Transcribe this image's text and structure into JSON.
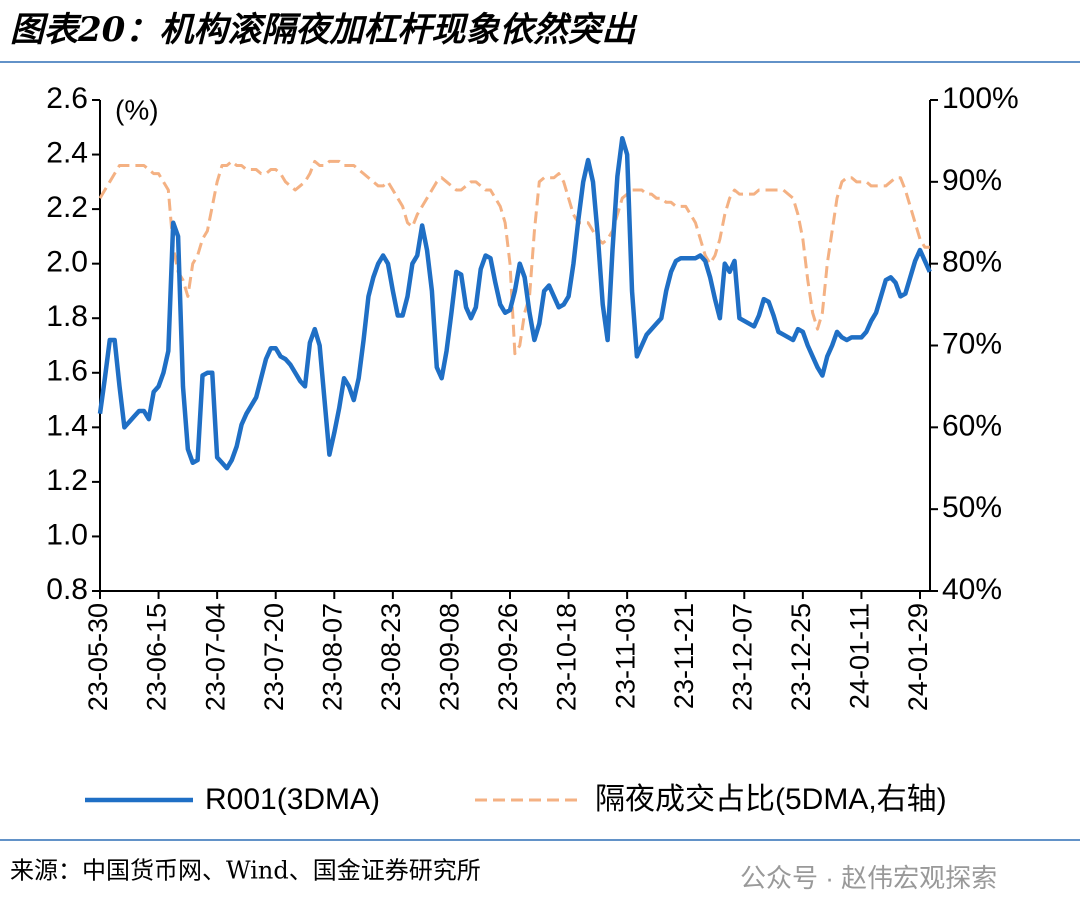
{
  "chart_data": {
    "type": "line",
    "title": "图表20：机构滚隔夜加杠杆现象依然突出",
    "annotation": "(%)",
    "source": "来源：中国货币网、Wind、国金证券研究所",
    "watermark": "公众号 · 赵伟宏观探索",
    "categories": [
      "23-05-30",
      null,
      null,
      null,
      null,
      null,
      null,
      null,
      null,
      null,
      null,
      null,
      "23-06-15",
      null,
      null,
      null,
      null,
      null,
      null,
      null,
      null,
      null,
      null,
      null,
      "23-07-04",
      null,
      null,
      null,
      null,
      null,
      null,
      null,
      null,
      null,
      null,
      null,
      "23-07-20",
      null,
      null,
      null,
      null,
      null,
      null,
      null,
      null,
      null,
      null,
      null,
      "23-08-07",
      null,
      null,
      null,
      null,
      null,
      null,
      null,
      null,
      null,
      null,
      null,
      "23-08-23",
      null,
      null,
      null,
      null,
      null,
      null,
      null,
      null,
      null,
      null,
      null,
      "23-09-08",
      null,
      null,
      null,
      null,
      null,
      null,
      null,
      null,
      null,
      null,
      null,
      "23-09-26",
      null,
      null,
      null,
      null,
      null,
      null,
      null,
      null,
      null,
      null,
      null,
      "23-10-18",
      null,
      null,
      null,
      null,
      null,
      null,
      null,
      null,
      null,
      null,
      null,
      "23-11-03",
      null,
      null,
      null,
      null,
      null,
      null,
      null,
      null,
      null,
      null,
      null,
      "23-11-21",
      null,
      null,
      null,
      null,
      null,
      null,
      null,
      null,
      null,
      null,
      null,
      "23-12-07",
      null,
      null,
      null,
      null,
      null,
      null,
      null,
      null,
      null,
      null,
      null,
      "23-12-25",
      null,
      null,
      null,
      null,
      null,
      null,
      null,
      null,
      null,
      null,
      null,
      "24-01-11",
      null,
      null,
      null,
      null,
      null,
      null,
      null,
      null,
      null,
      null,
      null,
      "24-01-29",
      null,
      null
    ],
    "series": [
      {
        "name": "R001(3DMA)",
        "color": "#1f6fc5",
        "axis": "y",
        "values": [
          1.45,
          1.58,
          1.72,
          1.72,
          1.55,
          1.4,
          1.42,
          1.44,
          1.46,
          1.46,
          1.43,
          1.53,
          1.55,
          1.6,
          1.68,
          2.15,
          2.1,
          1.55,
          1.32,
          1.27,
          1.28,
          1.59,
          1.6,
          1.6,
          1.29,
          1.27,
          1.25,
          1.28,
          1.33,
          1.41,
          1.45,
          1.48,
          1.51,
          1.58,
          1.65,
          1.69,
          1.69,
          1.66,
          1.65,
          1.63,
          1.6,
          1.57,
          1.55,
          1.71,
          1.76,
          1.7,
          1.5,
          1.3,
          1.38,
          1.47,
          1.58,
          1.55,
          1.5,
          1.58,
          1.72,
          1.88,
          1.95,
          2.0,
          2.03,
          2.0,
          1.9,
          1.81,
          1.81,
          1.88,
          2.0,
          2.03,
          2.14,
          2.05,
          1.9,
          1.62,
          1.58,
          1.68,
          1.82,
          1.97,
          1.96,
          1.84,
          1.8,
          1.84,
          1.98,
          2.03,
          2.02,
          1.93,
          1.85,
          1.82,
          1.83,
          1.9,
          2.0,
          1.95,
          1.82,
          1.72,
          1.78,
          1.9,
          1.92,
          1.88,
          1.84,
          1.85,
          1.88,
          2.0,
          2.16,
          2.3,
          2.38,
          2.3,
          2.1,
          1.85,
          1.72,
          2.05,
          2.32,
          2.46,
          2.4,
          1.9,
          1.66,
          1.7,
          1.74,
          1.76,
          1.78,
          1.8,
          1.9,
          1.97,
          2.01,
          2.02,
          2.02,
          2.02,
          2.02,
          2.03,
          2.01,
          1.95,
          1.87,
          1.8,
          2.0,
          1.97,
          2.01,
          1.8,
          1.79,
          1.78,
          1.77,
          1.81,
          1.87,
          1.86,
          1.81,
          1.75,
          1.74,
          1.73,
          1.72,
          1.76,
          1.75,
          1.7,
          1.66,
          1.62,
          1.59,
          1.66,
          1.7,
          1.75,
          1.73,
          1.72,
          1.73,
          1.73,
          1.73,
          1.75,
          1.79,
          1.82,
          1.88,
          1.94,
          1.95,
          1.93,
          1.88,
          1.89,
          1.95,
          2.01,
          2.05,
          2.01,
          1.97
        ]
      },
      {
        "name": "隔夜成交占比(5DMA,右轴)",
        "color": "#f4b183",
        "axis": "y2",
        "dashed": true,
        "values": [
          88,
          89,
          90,
          91,
          92,
          92,
          92,
          92,
          92,
          92,
          91.5,
          91,
          91,
          90,
          89,
          82,
          79,
          78,
          76,
          80,
          81,
          83,
          84,
          87,
          90,
          92,
          92,
          92.5,
          92,
          92,
          91.5,
          91.5,
          91.5,
          91,
          91,
          91.5,
          91.5,
          91,
          90,
          89.5,
          89,
          89.5,
          90,
          91,
          92.5,
          92,
          92,
          92.5,
          92.5,
          92.5,
          92,
          92,
          92,
          91.5,
          91,
          90.5,
          90,
          89.5,
          89.5,
          90,
          89,
          88,
          87,
          85,
          84.5,
          86,
          87,
          88,
          89,
          90,
          90.5,
          90,
          89.5,
          89,
          89,
          89.5,
          90,
          90,
          89.5,
          89,
          89,
          88,
          87,
          85,
          80,
          69,
          70,
          74,
          76,
          84,
          90,
          90.5,
          90.5,
          90.5,
          91,
          90,
          88,
          86,
          85,
          85,
          85,
          84,
          83,
          82.5,
          83,
          84,
          86,
          88,
          88.5,
          89,
          89,
          89,
          88.5,
          88.5,
          88,
          88,
          87.5,
          87.5,
          87,
          87,
          87,
          86,
          85,
          83,
          81,
          80,
          81,
          83,
          86,
          88,
          89,
          88.5,
          88.5,
          88.5,
          88.5,
          89,
          89,
          89,
          89,
          89,
          89,
          88.5,
          88,
          86,
          83,
          78,
          74,
          72,
          74,
          80,
          84,
          88,
          90,
          90.5,
          90.5,
          90,
          90,
          90,
          89.5,
          89.5,
          89.5,
          89.5,
          90,
          90.5,
          90.5,
          89,
          87,
          85,
          83,
          82,
          82
        ]
      }
    ],
    "ylim": [
      0.8,
      2.6
    ],
    "yticks": [
      0.8,
      {
        "value": 1,
        "label": "1.0"
      },
      1.2,
      1.4,
      1.6,
      1.8,
      {
        "value": 2,
        "label": "2.0"
      },
      2.2,
      2.4,
      2.6
    ],
    "y2lim": [
      40,
      100
    ],
    "y2ticks": [
      {
        "value": 40,
        "label": "40%"
      },
      {
        "value": 50,
        "label": "50%"
      },
      {
        "value": 60,
        "label": "60%"
      },
      {
        "value": 70,
        "label": "70%"
      },
      {
        "value": 80,
        "label": "80%"
      },
      {
        "value": 90,
        "label": "90%"
      },
      {
        "value": 100,
        "label": "100%"
      }
    ],
    "grid": false,
    "legend": "bottom"
  }
}
